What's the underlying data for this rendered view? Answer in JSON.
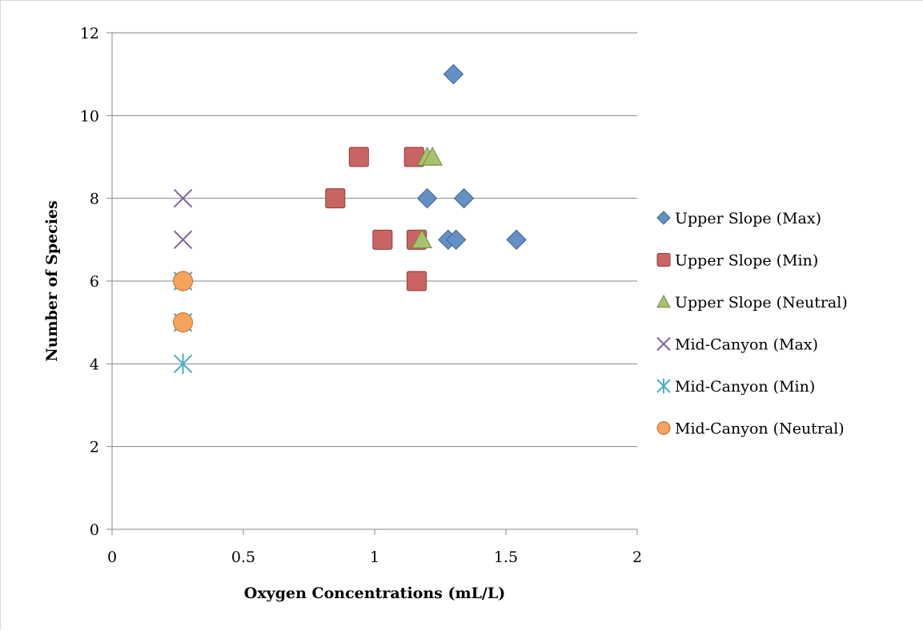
{
  "chart_data": {
    "type": "scatter",
    "title": "",
    "xlabel": "Oxygen Concentrations (mL/L)",
    "ylabel": "Number of Species",
    "xlim": [
      0,
      2
    ],
    "ylim": [
      0,
      12
    ],
    "x_ticks": [
      "0",
      "0.5",
      "1",
      "1.5",
      "2"
    ],
    "y_ticks": [
      "0",
      "2",
      "4",
      "6",
      "8",
      "10",
      "12"
    ],
    "grid": "horizontal",
    "legend_position": "right",
    "series": [
      {
        "name": "Upper Slope (Max)",
        "marker": "diamond",
        "color": "#4f81bd",
        "points": [
          [
            1.3,
            11
          ],
          [
            1.2,
            8
          ],
          [
            1.34,
            8
          ],
          [
            1.28,
            7
          ],
          [
            1.31,
            7
          ],
          [
            1.54,
            7
          ]
        ]
      },
      {
        "name": "Upper Slope (Min)",
        "marker": "square",
        "color": "#c0504d",
        "points": [
          [
            0.94,
            9
          ],
          [
            1.15,
            9
          ],
          [
            0.85,
            8
          ],
          [
            1.03,
            7
          ],
          [
            1.16,
            7
          ],
          [
            1.16,
            6
          ]
        ]
      },
      {
        "name": "Upper Slope (Neutral)",
        "marker": "triangle",
        "color": "#9bbb59",
        "points": [
          [
            1.2,
            9
          ],
          [
            1.22,
            9
          ],
          [
            1.18,
            7
          ]
        ]
      },
      {
        "name": "Mid-Canyon (Max)",
        "marker": "x",
        "color": "#8064a2",
        "points": [
          [
            0.27,
            8
          ],
          [
            0.27,
            7
          ],
          [
            0.27,
            6
          ],
          [
            0.27,
            5
          ]
        ]
      },
      {
        "name": "Mid-Canyon (Min)",
        "marker": "star",
        "color": "#4bacc6",
        "points": [
          [
            0.27,
            6
          ],
          [
            0.27,
            5
          ],
          [
            0.27,
            4
          ]
        ]
      },
      {
        "name": "Mid-Canyon (Neutral)",
        "marker": "circle",
        "color": "#f79646",
        "points": [
          [
            0.27,
            6
          ],
          [
            0.27,
            5
          ]
        ]
      }
    ]
  }
}
